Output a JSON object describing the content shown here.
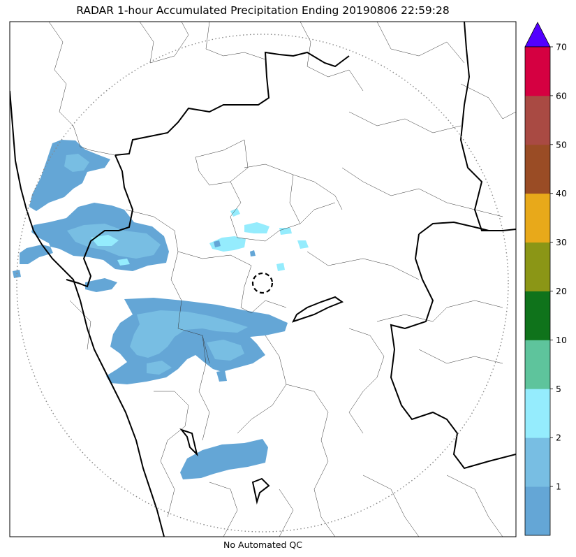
{
  "title": "RADAR 1-hour Accumulated Precipitation Ending 20190806 22:59:28",
  "footer": "No Automated QC",
  "colorbar": {
    "extend": "max",
    "overflow_color": "#5200ff",
    "levels": [
      {
        "label": "",
        "color": "#64a6d6"
      },
      {
        "label": "1",
        "color": "#78bee3"
      },
      {
        "label": "2",
        "color": "#95ecfd"
      },
      {
        "label": "5",
        "color": "#5ec49c"
      },
      {
        "label": "10",
        "color": "#0f731b"
      },
      {
        "label": "20",
        "color": "#8b9616"
      },
      {
        "label": "30",
        "color": "#e8a91a"
      },
      {
        "label": "40",
        "color": "#9a4c25"
      },
      {
        "label": "50",
        "color": "#a94a43"
      },
      {
        "label": "60",
        "color": "#d50041"
      },
      {
        "label": "70",
        "color": ""
      }
    ]
  },
  "legend_colors": {
    "light": "#64a6d6",
    "medium": "#78bee3",
    "cyan": "#95ecfd"
  }
}
